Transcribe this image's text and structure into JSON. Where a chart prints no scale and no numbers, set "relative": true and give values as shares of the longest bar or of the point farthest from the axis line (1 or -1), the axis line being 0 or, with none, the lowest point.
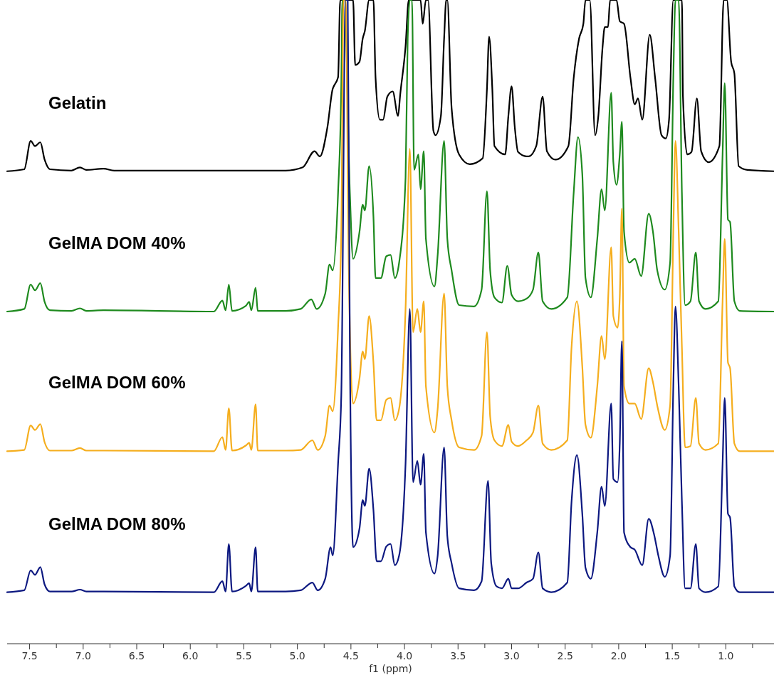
{
  "chart_data": {
    "type": "line",
    "relative": true,
    "xlabel": "f1 (ppm)",
    "xlim": [
      7.71,
      0.55
    ],
    "xticks": [
      {
        "value": 7.5,
        "label": "7.5"
      },
      {
        "value": 7.25,
        "label": null
      },
      {
        "value": 7,
        "label": "7.0"
      },
      {
        "value": 6.75,
        "label": null
      },
      {
        "value": 6.5,
        "label": "6.5"
      },
      {
        "value": 6.25,
        "label": null
      },
      {
        "value": 6,
        "label": "6.0"
      },
      {
        "value": 5.75,
        "label": null
      },
      {
        "value": 5.5,
        "label": "5.5"
      },
      {
        "value": 5.25,
        "label": null
      },
      {
        "value": 5,
        "label": "5.0"
      },
      {
        "value": 4.75,
        "label": null
      },
      {
        "value": 4.5,
        "label": "4.5"
      },
      {
        "value": 4.25,
        "label": null
      },
      {
        "value": 4,
        "label": "4.0"
      },
      {
        "value": 3.75,
        "label": null
      },
      {
        "value": 3.5,
        "label": "3.5"
      },
      {
        "value": 3.25,
        "label": null
      },
      {
        "value": 3,
        "label": "3.0"
      },
      {
        "value": 2.75,
        "label": null
      },
      {
        "value": 2.5,
        "label": "2.5"
      },
      {
        "value": 2.25,
        "label": null
      },
      {
        "value": 2,
        "label": "2.0"
      },
      {
        "value": 1.75,
        "label": null
      },
      {
        "value": 1.5,
        "label": "1.5"
      },
      {
        "value": 1.25,
        "label": null
      },
      {
        "value": 1,
        "label": "1.0"
      },
      {
        "value": 0.75,
        "label": null
      }
    ],
    "series": [
      {
        "name": "Gelatin",
        "color": "#000000",
        "x": [
          7.71,
          7.55,
          7.49,
          7.45,
          7.4,
          7.36,
          7.31,
          7.11,
          7.03,
          6.97,
          6.81,
          6.71,
          5.11,
          4.95,
          4.84,
          4.79,
          4.72,
          4.67,
          4.66,
          4.62,
          4.6,
          4.48,
          4.46,
          4.42,
          4.39,
          4.37,
          4.33,
          4.29,
          4.27,
          4.23,
          4.2,
          4.16,
          4.11,
          4.06,
          4.04,
          3.99,
          3.96,
          3.85,
          3.83,
          3.8,
          3.78,
          3.73,
          3.71,
          3.66,
          3.63,
          3.61,
          3.6,
          3.56,
          3.49,
          3.39,
          3.27,
          3.23,
          3.21,
          3.18,
          3.16,
          3.06,
          3.03,
          3.0,
          2.97,
          2.94,
          2.86,
          2.84,
          2.77,
          2.71,
          2.67,
          2.59,
          2.47,
          2.42,
          2.37,
          2.33,
          2.31,
          2.27,
          2.22,
          2.19,
          2.15,
          2.13,
          2.1,
          2.08,
          2.02,
          1.99,
          1.95,
          1.89,
          1.85,
          1.82,
          1.78,
          1.71,
          1.66,
          1.6,
          1.56,
          1.53,
          1.49,
          1.41,
          1.4,
          1.36,
          1.32,
          1.27,
          1.23,
          1.16,
          1.06,
          1.02,
          0.99,
          0.95,
          0.92,
          0.88,
          0.8,
          0.55
        ],
        "values": [
          0.734,
          0.737,
          0.781,
          0.773,
          0.779,
          0.752,
          0.737,
          0.735,
          0.74,
          0.736,
          0.738,
          0.735,
          0.735,
          0.74,
          0.765,
          0.757,
          0.802,
          0.862,
          0.866,
          0.88,
          1,
          1,
          0.899,
          0.904,
          0.94,
          0.952,
          1,
          1,
          0.879,
          0.814,
          0.814,
          0.85,
          0.858,
          0.82,
          0.853,
          0.928,
          1,
          1,
          0.963,
          1,
          1,
          0.797,
          0.79,
          0.82,
          0.94,
          1,
          1,
          0.832,
          0.76,
          0.745,
          0.754,
          0.862,
          0.943,
          0.862,
          0.773,
          0.76,
          0.82,
          0.866,
          0.802,
          0.764,
          0.757,
          0.757,
          0.773,
          0.85,
          0.765,
          0.752,
          0.773,
          0.879,
          0.94,
          0.963,
          1,
          1,
          0.79,
          0.82,
          0.928,
          0.958,
          0.958,
          1,
          1,
          0.967,
          0.963,
          0.879,
          0.838,
          0.847,
          0.814,
          0.946,
          0.879,
          0.79,
          0.785,
          0.814,
          1,
          1,
          0.85,
          0.76,
          0.764,
          0.847,
          0.765,
          0.748,
          0.773,
          1,
          1,
          0.904,
          0.886,
          0.742,
          0.736,
          0.734
        ]
      },
      {
        "name": "GelMA DOM 40%",
        "color": "#1e8a1e",
        "x": [
          7.71,
          7.55,
          7.49,
          7.45,
          7.4,
          7.36,
          7.31,
          7.11,
          7.03,
          6.97,
          6.81,
          5.78,
          5.7,
          5.67,
          5.64,
          5.61,
          5.48,
          5.45,
          5.43,
          5.39,
          5.37,
          5.11,
          4.97,
          4.87,
          4.82,
          4.74,
          4.7,
          4.67,
          4.62,
          4.59,
          4.58,
          4.56,
          4.51,
          4.48,
          4.42,
          4.39,
          4.37,
          4.33,
          4.29,
          4.27,
          4.22,
          4.17,
          4.13,
          4.09,
          4.05,
          3.99,
          3.97,
          3.95,
          3.93,
          3.91,
          3.87,
          3.85,
          3.82,
          3.8,
          3.72,
          3.69,
          3.63,
          3.6,
          3.56,
          3.49,
          3.35,
          3.28,
          3.23,
          3.2,
          3.16,
          3.09,
          3.04,
          3.0,
          2.94,
          2.86,
          2.8,
          2.75,
          2.71,
          2.63,
          2.48,
          2.42,
          2.38,
          2.34,
          2.31,
          2.26,
          2.2,
          2.16,
          2.13,
          2.07,
          2.05,
          2.02,
          1.99,
          1.97,
          1.95,
          1.9,
          1.85,
          1.79,
          1.72,
          1.68,
          1.64,
          1.57,
          1.52,
          1.49,
          1.47,
          1.44,
          1.41,
          1.38,
          1.33,
          1.28,
          1.25,
          1.19,
          1.07,
          1.03,
          1.01,
          0.98,
          0.96,
          0.92,
          0.87,
          0.55
        ],
        "values": [
          0.516,
          0.52,
          0.558,
          0.549,
          0.56,
          0.531,
          0.518,
          0.517,
          0.521,
          0.517,
          0.518,
          0.516,
          0.533,
          0.518,
          0.558,
          0.517,
          0.525,
          0.531,
          0.518,
          0.553,
          0.517,
          0.517,
          0.52,
          0.535,
          0.52,
          0.544,
          0.589,
          0.58,
          0.701,
          0.868,
          1,
          1,
          0.701,
          0.598,
          0.64,
          0.682,
          0.673,
          0.742,
          0.664,
          0.568,
          0.568,
          0.602,
          0.604,
          0.568,
          0.592,
          0.724,
          0.94,
          1,
          1,
          0.736,
          0.76,
          0.706,
          0.765,
          0.629,
          0.555,
          0.604,
          0.781,
          0.629,
          0.58,
          0.526,
          0.524,
          0.55,
          0.703,
          0.58,
          0.538,
          0.53,
          0.587,
          0.542,
          0.532,
          0.536,
          0.55,
          0.608,
          0.532,
          0.52,
          0.538,
          0.701,
          0.787,
          0.73,
          0.568,
          0.538,
          0.629,
          0.706,
          0.673,
          0.856,
          0.748,
          0.713,
          0.76,
          0.811,
          0.64,
          0.592,
          0.598,
          0.571,
          0.668,
          0.64,
          0.58,
          0.55,
          0.592,
          0.879,
          1,
          1,
          0.701,
          0.526,
          0.532,
          0.608,
          0.532,
          0.52,
          0.532,
          0.76,
          0.871,
          0.659,
          0.655,
          0.532,
          0.517,
          0.516
        ]
      },
      {
        "name": "GelMA DOM 60%",
        "color": "#f5ae1e",
        "x": [
          7.71,
          7.55,
          7.49,
          7.45,
          7.4,
          7.36,
          7.31,
          7.11,
          7.03,
          6.97,
          6.81,
          5.78,
          5.7,
          5.67,
          5.64,
          5.61,
          5.48,
          5.45,
          5.43,
          5.39,
          5.37,
          5.11,
          4.97,
          4.86,
          4.81,
          4.74,
          4.7,
          4.67,
          4.62,
          4.59,
          4.57,
          4.55,
          4.52,
          4.48,
          4.42,
          4.39,
          4.37,
          4.33,
          4.29,
          4.26,
          4.22,
          4.17,
          4.13,
          4.09,
          4.05,
          3.99,
          3.95,
          3.92,
          3.88,
          3.85,
          3.82,
          3.8,
          3.72,
          3.69,
          3.63,
          3.6,
          3.56,
          3.49,
          3.35,
          3.28,
          3.23,
          3.2,
          3.16,
          3.09,
          3.03,
          3.0,
          2.94,
          2.86,
          2.8,
          2.75,
          2.71,
          2.63,
          2.48,
          2.44,
          2.39,
          2.34,
          2.31,
          2.26,
          2.2,
          2.16,
          2.13,
          2.07,
          2.05,
          2.01,
          1.99,
          1.97,
          1.95,
          1.9,
          1.85,
          1.79,
          1.72,
          1.68,
          1.64,
          1.57,
          1.52,
          1.49,
          1.47,
          1.44,
          1.41,
          1.38,
          1.33,
          1.28,
          1.25,
          1.19,
          1.07,
          1.03,
          1.01,
          0.98,
          0.96,
          0.92,
          0.87,
          0.55
        ],
        "values": [
          0.299,
          0.301,
          0.339,
          0.332,
          0.341,
          0.313,
          0.3,
          0.3,
          0.304,
          0.3,
          0.3,
          0.299,
          0.321,
          0.301,
          0.366,
          0.3,
          0.308,
          0.312,
          0.301,
          0.372,
          0.3,
          0.3,
          0.301,
          0.316,
          0.301,
          0.323,
          0.37,
          0.361,
          0.491,
          0.64,
          1,
          1,
          0.58,
          0.373,
          0.412,
          0.454,
          0.442,
          0.509,
          0.437,
          0.347,
          0.347,
          0.379,
          0.382,
          0.347,
          0.365,
          0.52,
          0.769,
          0.484,
          0.52,
          0.484,
          0.532,
          0.4,
          0.328,
          0.365,
          0.544,
          0.4,
          0.347,
          0.305,
          0.301,
          0.323,
          0.484,
          0.353,
          0.316,
          0.307,
          0.34,
          0.314,
          0.307,
          0.316,
          0.328,
          0.37,
          0.311,
          0.301,
          0.316,
          0.461,
          0.532,
          0.431,
          0.34,
          0.32,
          0.4,
          0.478,
          0.442,
          0.616,
          0.509,
          0.491,
          0.538,
          0.676,
          0.4,
          0.373,
          0.373,
          0.349,
          0.428,
          0.406,
          0.37,
          0.332,
          0.37,
          0.64,
          0.781,
          0.64,
          0.461,
          0.305,
          0.307,
          0.382,
          0.311,
          0.301,
          0.311,
          0.532,
          0.629,
          0.437,
          0.428,
          0.311,
          0.299,
          0.299
        ]
      },
      {
        "name": "GelMA DOM 80%",
        "color": "#0c1880",
        "x": [
          7.71,
          7.55,
          7.49,
          7.45,
          7.4,
          7.36,
          7.31,
          7.11,
          7.03,
          6.97,
          6.81,
          5.78,
          5.7,
          5.67,
          5.64,
          5.61,
          5.48,
          5.45,
          5.43,
          5.39,
          5.37,
          5.11,
          4.97,
          4.86,
          4.81,
          4.74,
          4.69,
          4.67,
          4.62,
          4.59,
          4.55,
          4.53,
          4.51,
          4.48,
          4.42,
          4.39,
          4.37,
          4.33,
          4.29,
          4.26,
          4.22,
          4.17,
          4.13,
          4.09,
          4.05,
          3.99,
          3.95,
          3.92,
          3.88,
          3.85,
          3.82,
          3.8,
          3.72,
          3.69,
          3.63,
          3.6,
          3.56,
          3.49,
          3.35,
          3.28,
          3.22,
          3.19,
          3.14,
          3.09,
          3.03,
          3.0,
          2.94,
          2.86,
          2.8,
          2.75,
          2.71,
          2.63,
          2.48,
          2.44,
          2.39,
          2.34,
          2.31,
          2.26,
          2.2,
          2.16,
          2.13,
          2.07,
          2.05,
          2.01,
          1.99,
          1.97,
          1.95,
          1.89,
          1.85,
          1.78,
          1.72,
          1.67,
          1.63,
          1.57,
          1.52,
          1.49,
          1.47,
          1.44,
          1.41,
          1.38,
          1.33,
          1.28,
          1.25,
          1.19,
          1.07,
          1.03,
          1.01,
          0.98,
          0.96,
          0.92,
          0.87,
          0.55
        ],
        "values": [
          0.08,
          0.083,
          0.114,
          0.107,
          0.119,
          0.092,
          0.081,
          0.081,
          0.084,
          0.081,
          0.081,
          0.08,
          0.097,
          0.081,
          0.155,
          0.081,
          0.09,
          0.094,
          0.081,
          0.15,
          0.081,
          0.081,
          0.083,
          0.095,
          0.083,
          0.101,
          0.15,
          0.137,
          0.28,
          0.386,
          1,
          1,
          0.461,
          0.15,
          0.179,
          0.223,
          0.214,
          0.272,
          0.208,
          0.128,
          0.128,
          0.151,
          0.155,
          0.122,
          0.137,
          0.28,
          0.52,
          0.251,
          0.284,
          0.247,
          0.295,
          0.173,
          0.109,
          0.137,
          0.305,
          0.167,
          0.125,
          0.086,
          0.083,
          0.097,
          0.253,
          0.125,
          0.089,
          0.086,
          0.101,
          0.086,
          0.086,
          0.095,
          0.101,
          0.142,
          0.086,
          0.08,
          0.095,
          0.221,
          0.293,
          0.202,
          0.118,
          0.101,
          0.173,
          0.244,
          0.214,
          0.373,
          0.256,
          0.251,
          0.311,
          0.47,
          0.173,
          0.15,
          0.146,
          0.122,
          0.194,
          0.17,
          0.137,
          0.104,
          0.137,
          0.4,
          0.524,
          0.4,
          0.221,
          0.086,
          0.086,
          0.155,
          0.086,
          0.08,
          0.089,
          0.28,
          0.382,
          0.202,
          0.196,
          0.089,
          0.08,
          0.08
        ]
      }
    ]
  }
}
